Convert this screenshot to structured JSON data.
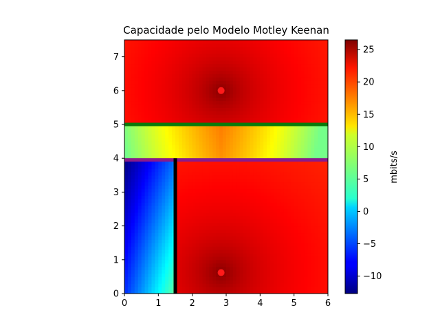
{
  "chart_data": {
    "type": "heatmap",
    "title": "Capacidade pelo Modelo Motley Keenan",
    "xlabel": "",
    "ylabel": "",
    "xlim": [
      0,
      6
    ],
    "ylim": [
      0,
      7.5
    ],
    "x_ticks": [
      "0",
      "1",
      "2",
      "3",
      "4",
      "5",
      "6"
    ],
    "y_ticks": [
      "0",
      "1",
      "2",
      "3",
      "4",
      "5",
      "6",
      "7"
    ],
    "colormap": "jet",
    "colorbar": {
      "label": "mbits/s",
      "range": [
        -12.7,
        26.5
      ],
      "ticks": [
        "−10",
        "−5",
        "0",
        "5",
        "10",
        "15",
        "20",
        "25"
      ],
      "tick_values": [
        -10,
        -5,
        0,
        5,
        10,
        15,
        20,
        25
      ]
    },
    "access_points": [
      {
        "x": 2.85,
        "y": 6.0,
        "color": "#ff1a1a"
      },
      {
        "x": 2.85,
        "y": 0.62,
        "color": "#ff1a1a"
      }
    ],
    "walls": [
      {
        "x1": 0,
        "y1": 5.0,
        "x2": 6,
        "y2": 5.0,
        "color": "#0a7a0a"
      },
      {
        "x1": 0,
        "y1": 3.95,
        "x2": 6,
        "y2": 3.95,
        "color": "#8a1a8a"
      },
      {
        "x1": 1.5,
        "y1": 0,
        "x2": 1.5,
        "y2": 4.0,
        "color": "#000000"
      }
    ],
    "field": {
      "peak_capacity": 26.5,
      "min_capacity": -12.7,
      "approx_values": [
        {
          "region": "top room",
          "near_ap": 26,
          "far": 20
        },
        {
          "region": "corridor",
          "center": 15,
          "edges": 7
        },
        {
          "region": "bottom-right room",
          "near_ap": 26,
          "far": 19
        },
        {
          "region": "bottom-left room",
          "top_left": -12.5,
          "bottom_right": 3
        }
      ]
    }
  }
}
